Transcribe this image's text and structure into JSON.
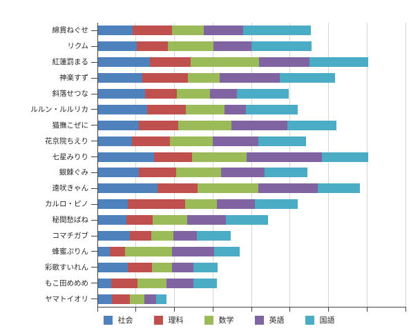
{
  "chart_data": {
    "type": "bar",
    "orientation": "horizontal",
    "stacked": true,
    "title": "",
    "xlabel": "",
    "ylabel": "",
    "grid": true,
    "legend_position": "bottom",
    "xlim": [
      0,
      400
    ],
    "x_gridline_interval": 50,
    "x_tick_labels": [],
    "axis_color": "#3f3f3f",
    "gridline_color": "#d6d6d6",
    "categories": [
      "綿貫ねぐせ",
      "リクム",
      "紅蓮罰まる",
      "神楽すず",
      "斜落せつな",
      "ルルン・ルルリカ",
      "猫撫こぜに",
      "花京院ちえり",
      "七星みりり",
      "銀棘ぐみ",
      "遠吠きゃん",
      "カルロ・ピノ",
      "秘間愁ばね",
      "コマチガブ",
      "蜂蜜ぷりん",
      "彩歌すいれん",
      "もこ田めめめ",
      "ヤマトイオリ"
    ],
    "series": [
      {
        "name": "社会",
        "color": "#4F81BD",
        "values": [
          45,
          50,
          67,
          57,
          61,
          64,
          53,
          44,
          73,
          53,
          77,
          39,
          37,
          41,
          15,
          39,
          17,
          18
        ]
      },
      {
        "name": "理科",
        "color": "#C0504D",
        "values": [
          51,
          41,
          53,
          60,
          41,
          50,
          51,
          49,
          49,
          48,
          52,
          74,
          34,
          28,
          20,
          31,
          34,
          23
        ]
      },
      {
        "name": "数学",
        "color": "#9BBB59",
        "values": [
          41,
          59,
          89,
          41,
          43,
          50,
          69,
          56,
          71,
          59,
          79,
          41,
          45,
          29,
          61,
          26,
          38,
          19
        ]
      },
      {
        "name": "英語",
        "color": "#8064A2",
        "values": [
          51,
          49,
          65,
          78,
          35,
          28,
          73,
          59,
          98,
          56,
          77,
          50,
          50,
          30,
          55,
          28,
          35,
          15
        ]
      },
      {
        "name": "国語",
        "color": "#4BACC6",
        "values": [
          88,
          78,
          77,
          72,
          68,
          67,
          63,
          62,
          60,
          56,
          55,
          55,
          55,
          44,
          33,
          31,
          30,
          14
        ]
      }
    ]
  }
}
